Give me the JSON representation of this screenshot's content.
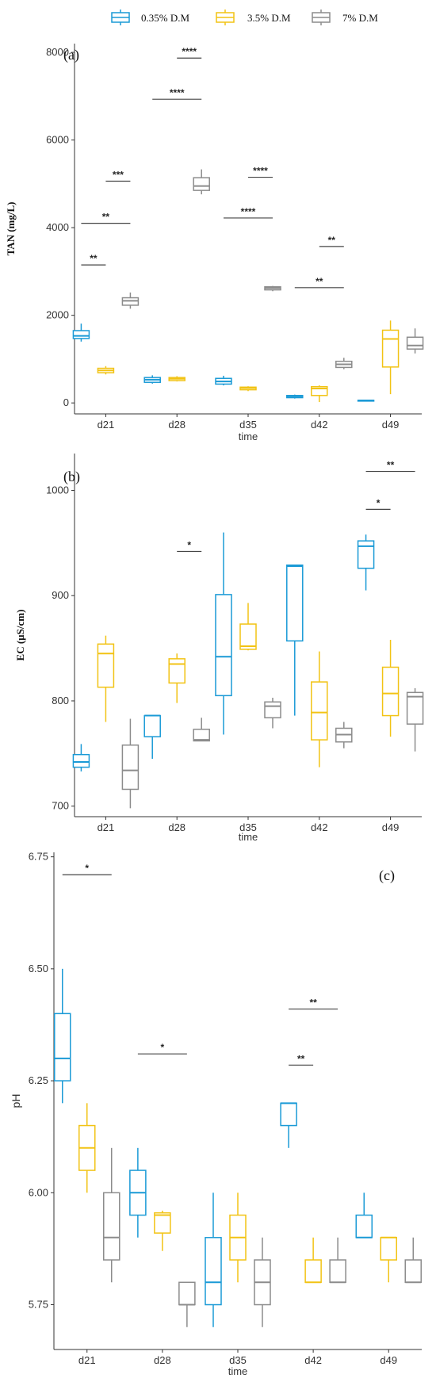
{
  "legend": {
    "entries": [
      {
        "label": "0.35% D.M",
        "color": "#1a9ad6"
      },
      {
        "label": "3.5% D.M",
        "color": "#f2c314"
      },
      {
        "label": "7% D.M",
        "color": "#8c8c8c"
      }
    ]
  },
  "chart_data": [
    {
      "type": "box",
      "tag": "(a)",
      "ylabel": "TAN (mg/L)",
      "xlabel": "time",
      "categories": [
        "d21",
        "d28",
        "d35",
        "d42",
        "d49"
      ],
      "ylim": [
        -250,
        8200
      ],
      "yticks": [
        0,
        2000,
        4000,
        6000,
        8000
      ],
      "series": [
        {
          "name": "0.35% D.M",
          "boxes": [
            {
              "min": 1400,
              "q1": 1470,
              "median": 1530,
              "q3": 1650,
              "max": 1810
            },
            {
              "min": 440,
              "q1": 470,
              "median": 530,
              "q3": 580,
              "max": 630
            },
            {
              "min": 400,
              "q1": 430,
              "median": 490,
              "q3": 560,
              "max": 620
            },
            {
              "min": 100,
              "q1": 120,
              "median": 150,
              "q3": 170,
              "max": 190
            },
            {
              "min": 40,
              "q1": 45,
              "median": 55,
              "q3": 60,
              "max": 65
            }
          ]
        },
        {
          "name": "3.5% D.M",
          "boxes": [
            {
              "min": 650,
              "q1": 690,
              "median": 740,
              "q3": 790,
              "max": 840
            },
            {
              "min": 490,
              "q1": 510,
              "median": 550,
              "q3": 580,
              "max": 610
            },
            {
              "min": 270,
              "q1": 300,
              "median": 340,
              "q3": 360,
              "max": 380
            },
            {
              "min": 20,
              "q1": 170,
              "median": 330,
              "q3": 370,
              "max": 400
            },
            {
              "min": 200,
              "q1": 820,
              "median": 1460,
              "q3": 1660,
              "max": 1880
            }
          ]
        },
        {
          "name": "7% D.M",
          "boxes": [
            {
              "min": 2150,
              "q1": 2230,
              "median": 2330,
              "q3": 2400,
              "max": 2520
            },
            {
              "min": 4760,
              "q1": 4850,
              "median": 4950,
              "q3": 5140,
              "max": 5330
            },
            {
              "min": 2550,
              "q1": 2580,
              "median": 2620,
              "q3": 2650,
              "max": 2670
            },
            {
              "min": 770,
              "q1": 810,
              "median": 880,
              "q3": 950,
              "max": 1030
            },
            {
              "min": 1130,
              "q1": 1230,
              "median": 1310,
              "q3": 1500,
              "max": 1700
            }
          ]
        }
      ],
      "significance": [
        {
          "label": "**",
          "from": 0,
          "from_off": -1,
          "to": 0,
          "to_off": 0,
          "y": 3150
        },
        {
          "label": "**",
          "from": 0,
          "from_off": -1,
          "to": 0,
          "to_off": 1,
          "y": 4100
        },
        {
          "label": "***",
          "from": 0,
          "from_off": 0,
          "to": 0,
          "to_off": 1,
          "y": 5060
        },
        {
          "label": "****",
          "from": 1,
          "from_off": -1,
          "to": 1,
          "to_off": 1,
          "y": 6930
        },
        {
          "label": "****",
          "from": 1,
          "from_off": 0,
          "to": 1,
          "to_off": 1,
          "y": 7870
        },
        {
          "label": "****",
          "from": 2,
          "from_off": -1,
          "to": 2,
          "to_off": 1,
          "y": 4220
        },
        {
          "label": "****",
          "from": 2,
          "from_off": 0,
          "to": 2,
          "to_off": 1,
          "y": 5150
        },
        {
          "label": "**",
          "from": 3,
          "from_off": -1,
          "to": 3,
          "to_off": 1,
          "y": 2630
        },
        {
          "label": "**",
          "from": 3,
          "from_off": 0,
          "to": 3,
          "to_off": 1,
          "y": 3570
        }
      ]
    },
    {
      "type": "box",
      "tag": "(b)",
      "ylabel": "EC (µS/cm)",
      "xlabel": "time",
      "categories": [
        "d21",
        "d28",
        "d35",
        "d42",
        "d49"
      ],
      "ylim": [
        690,
        1035
      ],
      "yticks": [
        700,
        800,
        900,
        1000
      ],
      "series": [
        {
          "name": "0.35% D.M",
          "boxes": [
            {
              "min": 733,
              "q1": 737,
              "median": 742,
              "q3": 749,
              "max": 759
            },
            {
              "min": 745,
              "q1": 766,
              "median": 786,
              "q3": 786,
              "max": 786
            },
            {
              "min": 768,
              "q1": 805,
              "median": 842,
              "q3": 901,
              "max": 960
            },
            {
              "min": 786,
              "q1": 857,
              "median": 928,
              "q3": 929,
              "max": 929
            },
            {
              "min": 905,
              "q1": 926,
              "median": 947,
              "q3": 952,
              "max": 958
            }
          ]
        },
        {
          "name": "3.5% D.M",
          "boxes": [
            {
              "min": 780,
              "q1": 813,
              "median": 845,
              "q3": 854,
              "max": 862
            },
            {
              "min": 798,
              "q1": 817,
              "median": 835,
              "q3": 840,
              "max": 845
            },
            {
              "min": 848,
              "q1": 849,
              "median": 852,
              "q3": 873,
              "max": 893
            },
            {
              "min": 737,
              "q1": 763,
              "median": 789,
              "q3": 818,
              "max": 847
            },
            {
              "min": 766,
              "q1": 786,
              "median": 807,
              "q3": 832,
              "max": 858
            }
          ]
        },
        {
          "name": "7% D.M",
          "boxes": [
            {
              "min": 698,
              "q1": 716,
              "median": 734,
              "q3": 758,
              "max": 783
            },
            {
              "min": 762,
              "q1": 762,
              "median": 763,
              "q3": 773,
              "max": 784
            },
            {
              "min": 774,
              "q1": 784,
              "median": 795,
              "q3": 799,
              "max": 803
            },
            {
              "min": 755,
              "q1": 761,
              "median": 768,
              "q3": 774,
              "max": 780
            },
            {
              "min": 752,
              "q1": 778,
              "median": 804,
              "q3": 808,
              "max": 812
            }
          ]
        }
      ],
      "significance": [
        {
          "label": "*",
          "from": 1,
          "from_off": 0,
          "to": 1,
          "to_off": 1,
          "y": 942
        },
        {
          "label": "*",
          "from": 4,
          "from_off": -1,
          "to": 4,
          "to_off": 0,
          "y": 982
        },
        {
          "label": "**",
          "from": 4,
          "from_off": -1,
          "to": 4,
          "to_off": 1,
          "y": 1018
        }
      ]
    },
    {
      "type": "box",
      "tag": "(c)",
      "ylabel": "pH",
      "xlabel": "time",
      "categories": [
        "d21",
        "d28",
        "d35",
        "d42",
        "d49"
      ],
      "ylim": [
        5.65,
        6.76
      ],
      "yticks": [
        5.75,
        6.0,
        6.25,
        6.5,
        6.75
      ],
      "ytick_labels": [
        "5.75",
        "6.00",
        "6.25",
        "6.50",
        "6.75"
      ],
      "series": [
        {
          "name": "0.35% D.M",
          "boxes": [
            {
              "min": 6.2,
              "q1": 6.25,
              "median": 6.3,
              "q3": 6.4,
              "max": 6.5
            },
            {
              "min": 5.9,
              "q1": 5.95,
              "median": 6.0,
              "q3": 6.05,
              "max": 6.1
            },
            {
              "min": 5.7,
              "q1": 5.75,
              "median": 5.8,
              "q3": 5.9,
              "max": 6.0
            },
            {
              "min": 6.1,
              "q1": 6.15,
              "median": 6.2,
              "q3": 6.2,
              "max": 6.2
            },
            {
              "min": 5.9,
              "q1": 5.9,
              "median": 5.9,
              "q3": 5.95,
              "max": 6.0
            }
          ]
        },
        {
          "name": "3.5% D.M",
          "boxes": [
            {
              "min": 6.0,
              "q1": 6.05,
              "median": 6.1,
              "q3": 6.15,
              "max": 6.2
            },
            {
              "min": 5.87,
              "q1": 5.91,
              "median": 5.95,
              "q3": 5.955,
              "max": 5.96
            },
            {
              "min": 5.8,
              "q1": 5.85,
              "median": 5.9,
              "q3": 5.95,
              "max": 6.0
            },
            {
              "min": 5.8,
              "q1": 5.8,
              "median": 5.8,
              "q3": 5.85,
              "max": 5.9
            },
            {
              "min": 5.8,
              "q1": 5.85,
              "median": 5.9,
              "q3": 5.9,
              "max": 5.9
            }
          ]
        },
        {
          "name": "7% D.M",
          "boxes": [
            {
              "min": 5.8,
              "q1": 5.85,
              "median": 5.9,
              "q3": 6.0,
              "max": 6.1
            },
            {
              "min": 5.7,
              "q1": 5.75,
              "median": 5.75,
              "q3": 5.8,
              "max": 5.8
            },
            {
              "min": 5.7,
              "q1": 5.75,
              "median": 5.8,
              "q3": 5.85,
              "max": 5.9
            },
            {
              "min": 5.8,
              "q1": 5.8,
              "median": 5.8,
              "q3": 5.85,
              "max": 5.9
            },
            {
              "min": 5.8,
              "q1": 5.8,
              "median": 5.8,
              "q3": 5.85,
              "max": 5.9
            }
          ]
        }
      ],
      "significance": [
        {
          "label": "*",
          "from": 0,
          "from_off": -1,
          "to": 0,
          "to_off": 1,
          "y": 6.71
        },
        {
          "label": "*",
          "from": 1,
          "from_off": -1,
          "to": 1,
          "to_off": 1,
          "y": 6.31
        },
        {
          "label": "**",
          "from": 3,
          "from_off": -1,
          "to": 3,
          "to_off": 0,
          "y": 6.285
        },
        {
          "label": "**",
          "from": 3,
          "from_off": -1,
          "to": 3,
          "to_off": 1,
          "y": 6.41
        }
      ]
    }
  ]
}
